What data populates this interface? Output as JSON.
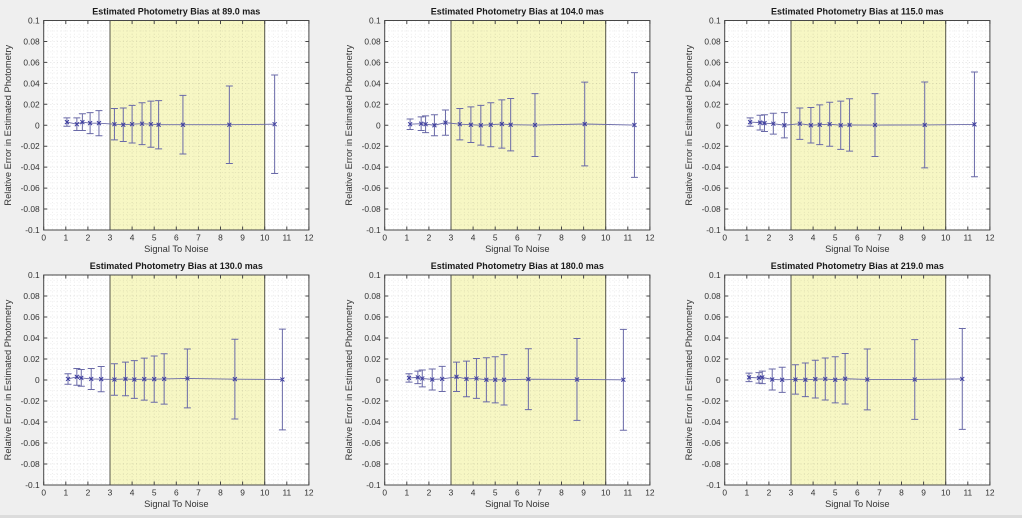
{
  "figure": {
    "background": "#efefef",
    "band_color": "#f7f7c4",
    "band_edge_color": "#55554a",
    "errorbar_color": "#6a6aa8",
    "marker_color": "#3d3da0",
    "grid_major_color": "#222222",
    "grid_major_alpha": 0.18,
    "grid_minor_color": "#333333",
    "grid_minor_alpha": 0.12,
    "axes_color": "#474747",
    "text_color": "#333333",
    "title_color": "#1a1a1a"
  },
  "chart_data": [
    {
      "type": "errorbar",
      "title": "Estimated Photometry Bias at 89.0 mas",
      "xlabel": "Signal To Noise",
      "ylabel": "Relative Error in Estimated Photometry",
      "xlim": [
        0,
        12
      ],
      "ylim": [
        -0.1,
        0.1
      ],
      "xticks": [
        0,
        1,
        2,
        3,
        4,
        5,
        6,
        7,
        8,
        9,
        10,
        11,
        12
      ],
      "yticks": [
        0.1,
        0.08,
        0.06,
        0.04,
        0.02,
        0,
        -0.02,
        -0.04,
        -0.06,
        -0.08,
        -0.1
      ],
      "band_x": [
        3,
        10
      ],
      "grid": "major+minor",
      "x": [
        1.05,
        1.5,
        1.75,
        2.1,
        2.5,
        3.2,
        3.6,
        4.0,
        4.45,
        4.85,
        5.2,
        6.3,
        8.4,
        10.45
      ],
      "y": [
        0.003,
        0.001,
        0.003,
        0.002,
        0.002,
        0.001,
        0.0005,
        0.001,
        0.0015,
        0.001,
        0.0005,
        0.0005,
        0.0005,
        0.001
      ],
      "yerr": [
        0.004,
        0.006,
        0.008,
        0.01,
        0.012,
        0.015,
        0.016,
        0.018,
        0.02,
        0.022,
        0.023,
        0.028,
        0.037,
        0.047
      ]
    },
    {
      "type": "errorbar",
      "title": "Estimated Photometry Bias at 104.0 mas",
      "xlabel": "Signal To Noise",
      "ylabel": "Relative Error in Estimated Photometry",
      "xlim": [
        0,
        12
      ],
      "ylim": [
        -0.1,
        0.1
      ],
      "xticks": [
        0,
        1,
        2,
        3,
        4,
        5,
        6,
        7,
        8,
        9,
        10,
        11,
        12
      ],
      "yticks": [
        0.1,
        0.08,
        0.06,
        0.04,
        0.02,
        0,
        -0.02,
        -0.04,
        -0.06,
        -0.08,
        -0.1
      ],
      "band_x": [
        3,
        10
      ],
      "grid": "major+minor",
      "x": [
        1.15,
        1.65,
        1.85,
        2.25,
        2.75,
        3.4,
        3.9,
        4.35,
        4.8,
        5.3,
        5.7,
        6.8,
        9.05,
        11.3
      ],
      "y": [
        0.001,
        0.0015,
        0.001,
        0.0,
        0.0025,
        0.001,
        0.0005,
        0.0,
        0.0005,
        0.0012,
        0.0005,
        0.0002,
        0.0012,
        0.0002
      ],
      "yerr": [
        0.005,
        0.0065,
        0.008,
        0.01,
        0.012,
        0.015,
        0.017,
        0.019,
        0.021,
        0.023,
        0.025,
        0.03,
        0.04,
        0.05
      ]
    },
    {
      "type": "errorbar",
      "title": "Estimated Photometry Bias at 115.0 mas",
      "xlabel": "Signal To Noise",
      "ylabel": "Relative Error in Estimated Photometry",
      "xlim": [
        0,
        12
      ],
      "ylim": [
        -0.1,
        0.1
      ],
      "xticks": [
        0,
        1,
        2,
        3,
        4,
        5,
        6,
        7,
        8,
        9,
        10,
        11,
        12
      ],
      "yticks": [
        0.1,
        0.08,
        0.06,
        0.04,
        0.02,
        0,
        -0.02,
        -0.04,
        -0.06,
        -0.08,
        -0.1
      ],
      "band_x": [
        3,
        10
      ],
      "grid": "major+minor",
      "x": [
        1.15,
        1.6,
        1.8,
        2.2,
        2.7,
        3.4,
        3.9,
        4.3,
        4.75,
        5.25,
        5.65,
        6.8,
        9.05,
        11.3
      ],
      "y": [
        0.003,
        0.0025,
        0.002,
        0.0015,
        0.0,
        0.0015,
        0.0,
        0.0005,
        0.001,
        0.0,
        0.0003,
        0.0002,
        0.0003,
        0.0008
      ],
      "yerr": [
        0.004,
        0.007,
        0.008,
        0.01,
        0.012,
        0.015,
        0.017,
        0.019,
        0.021,
        0.023,
        0.025,
        0.03,
        0.041,
        0.05
      ]
    },
    {
      "type": "errorbar",
      "title": "Estimated Photometry Bias at 130.0 mas",
      "xlabel": "Signal To Noise",
      "ylabel": "Relative Error in Estimated Photometry",
      "xlim": [
        0,
        12
      ],
      "ylim": [
        -0.1,
        0.1
      ],
      "xticks": [
        0,
        1,
        2,
        3,
        4,
        5,
        6,
        7,
        8,
        9,
        10,
        11,
        12
      ],
      "yticks": [
        0.1,
        0.08,
        0.06,
        0.04,
        0.02,
        0,
        -0.02,
        -0.04,
        -0.06,
        -0.08,
        -0.1
      ],
      "band_x": [
        3,
        10
      ],
      "grid": "major+minor",
      "x": [
        1.1,
        1.5,
        1.7,
        2.15,
        2.6,
        3.2,
        3.7,
        4.1,
        4.55,
        5.0,
        5.45,
        6.5,
        8.65,
        10.8
      ],
      "y": [
        0.001,
        0.003,
        0.002,
        0.001,
        0.0008,
        0.0005,
        0.001,
        0.0005,
        0.0008,
        0.0008,
        0.001,
        0.0015,
        0.0008,
        0.0005
      ],
      "yerr": [
        0.005,
        0.008,
        0.008,
        0.01,
        0.012,
        0.015,
        0.016,
        0.018,
        0.02,
        0.022,
        0.024,
        0.028,
        0.038,
        0.048
      ]
    },
    {
      "type": "errorbar",
      "title": "Estimated Photometry Bias at 180.0 mas",
      "xlabel": "Signal To Noise",
      "ylabel": "Relative Error in Estimated Photometry",
      "xlim": [
        0,
        12
      ],
      "ylim": [
        -0.1,
        0.1
      ],
      "xticks": [
        0,
        1,
        2,
        3,
        4,
        5,
        6,
        7,
        8,
        9,
        10,
        11,
        12
      ],
      "yticks": [
        0.1,
        0.08,
        0.06,
        0.04,
        0.02,
        0,
        -0.02,
        -0.04,
        -0.06,
        -0.08,
        -0.1
      ],
      "band_x": [
        3,
        10
      ],
      "grid": "major+minor",
      "x": [
        1.1,
        1.5,
        1.7,
        2.15,
        2.6,
        3.25,
        3.7,
        4.15,
        4.6,
        5.0,
        5.4,
        6.5,
        8.7,
        10.8
      ],
      "y": [
        0.002,
        0.0025,
        0.0015,
        0.0005,
        0.001,
        0.003,
        0.001,
        0.0015,
        0.0002,
        0.0002,
        0.0002,
        0.0008,
        0.0005,
        0.0002
      ],
      "yerr": [
        0.004,
        0.006,
        0.008,
        0.01,
        0.012,
        0.014,
        0.017,
        0.019,
        0.021,
        0.022,
        0.024,
        0.029,
        0.039,
        0.048
      ]
    },
    {
      "type": "errorbar",
      "title": "Estimated Photometry Bias at 219.0 mas",
      "xlabel": "Signal To Noise",
      "ylabel": "Relative Error in Estimated Photometry",
      "xlim": [
        0,
        12
      ],
      "ylim": [
        -0.1,
        0.1
      ],
      "xticks": [
        0,
        1,
        2,
        3,
        4,
        5,
        6,
        7,
        8,
        9,
        10,
        11,
        12
      ],
      "yticks": [
        0.1,
        0.08,
        0.06,
        0.04,
        0.02,
        0,
        -0.02,
        -0.04,
        -0.06,
        -0.08,
        -0.1
      ],
      "band_x": [
        3,
        10
      ],
      "grid": "major+minor",
      "x": [
        1.1,
        1.55,
        1.7,
        2.15,
        2.6,
        3.2,
        3.65,
        4.1,
        4.55,
        5.0,
        5.45,
        6.45,
        8.6,
        10.75
      ],
      "y": [
        0.0025,
        0.002,
        0.0025,
        0.0005,
        0.0002,
        0.0005,
        0.0002,
        0.0008,
        0.001,
        0.0002,
        0.0012,
        0.0005,
        0.0005,
        0.001
      ],
      "yerr": [
        0.004,
        0.005,
        0.006,
        0.01,
        0.012,
        0.014,
        0.016,
        0.018,
        0.02,
        0.022,
        0.024,
        0.029,
        0.038,
        0.048
      ]
    }
  ]
}
